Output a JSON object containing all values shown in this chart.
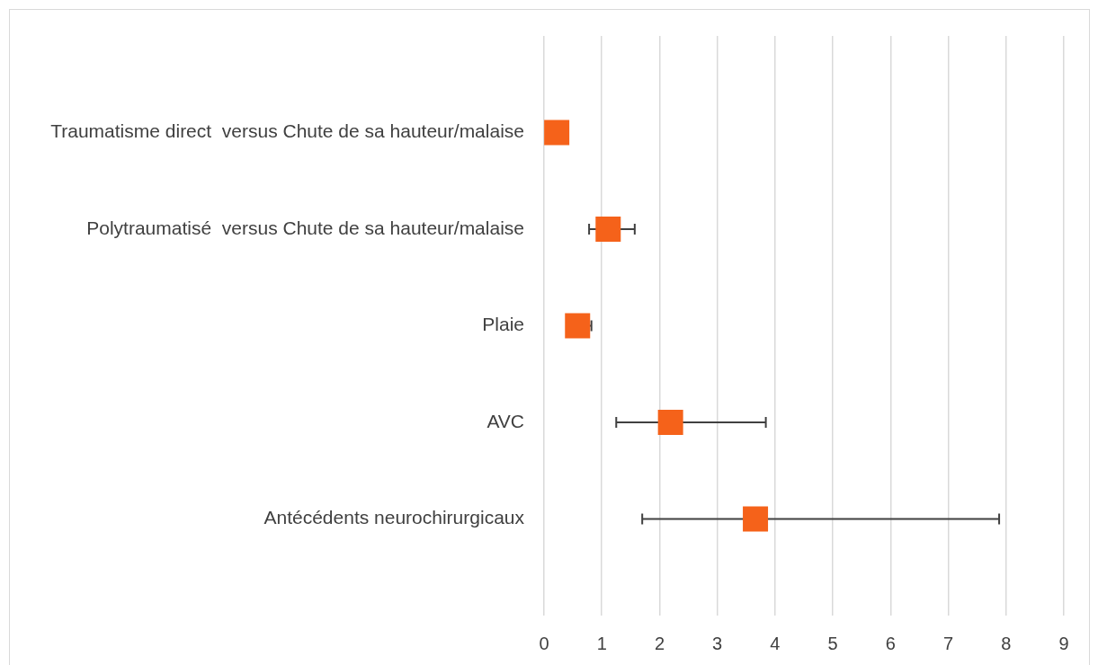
{
  "chart_data": {
    "type": "scatter",
    "orientation": "horizontal",
    "categories": [
      "Traumatisme direct  versus Chute de sa hauteur/malaise",
      "Polytraumatisé  versus Chute de sa hauteur/malaise",
      "Plaie",
      "AVC",
      "Antécédents neurochirurgicaux"
    ],
    "values": [
      0.22,
      1.11,
      0.58,
      2.19,
      3.66
    ],
    "errors": [
      null,
      [
        0.78,
        1.57
      ],
      [
        0.58,
        0.82
      ],
      [
        1.25,
        3.84
      ],
      [
        1.7,
        7.88
      ]
    ],
    "color": "#f5621a",
    "marker": "square",
    "xlim": [
      0,
      9
    ],
    "xticks": [
      0,
      1,
      2,
      3,
      4,
      5,
      6,
      7,
      8,
      9
    ],
    "grid": "x"
  }
}
